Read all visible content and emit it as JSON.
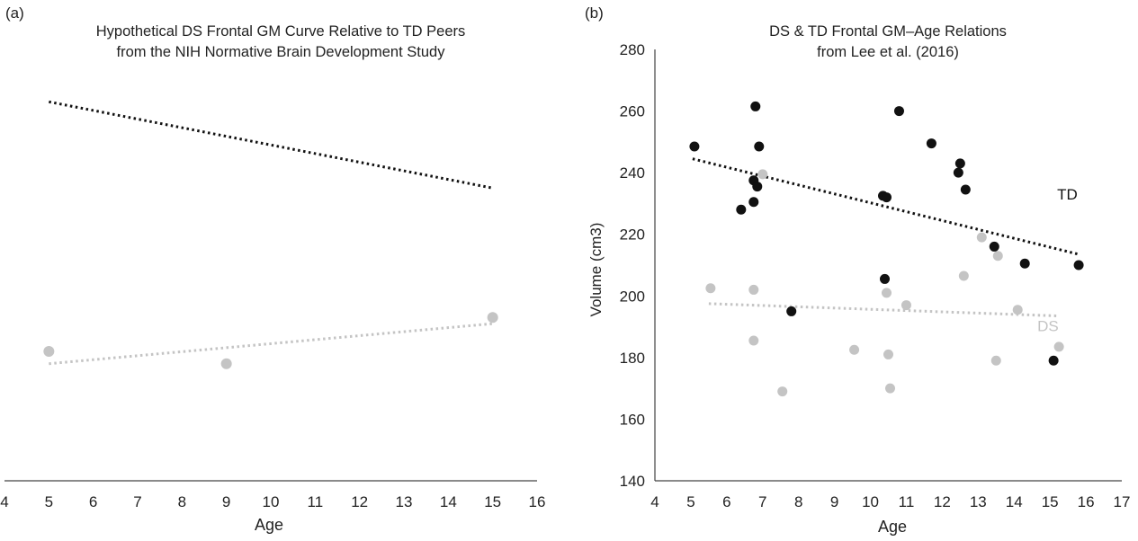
{
  "chart_data": [
    {
      "panel_label": "(a)",
      "type": "scatter",
      "title": "Hypothetical DS Frontal GM Curve Relative to TD Peers",
      "subtitle": "from the NIH Normative Brain Development Study",
      "xlabel": "Age",
      "ylabel": "",
      "xlim": [
        4,
        16
      ],
      "ylim": [
        140,
        280
      ],
      "x_ticks": [
        "4",
        "5",
        "6",
        "7",
        "8",
        "9",
        "10",
        "11",
        "12",
        "13",
        "14",
        "15",
        "16"
      ],
      "y_axis_visible": false,
      "grid": false,
      "series": [
        {
          "label": "",
          "color": "#111111",
          "points": [],
          "trend": [
            [
              5,
              263
            ],
            [
              15,
              235
            ]
          ]
        },
        {
          "label": "",
          "color": "#c4c4c4",
          "points": [
            [
              5,
              182
            ],
            [
              9,
              178
            ],
            [
              15,
              193
            ]
          ],
          "trend": [
            [
              5,
              178
            ],
            [
              15,
              191
            ]
          ]
        }
      ]
    },
    {
      "panel_label": "(b)",
      "type": "scatter",
      "title": "DS & TD Frontal GM–Age Relations",
      "subtitle": "from Lee et al. (2016)",
      "xlabel": "Age",
      "ylabel": "Volume (cm3)",
      "xlim": [
        4,
        17
      ],
      "ylim": [
        140,
        280
      ],
      "x_ticks": [
        "4",
        "5",
        "6",
        "7",
        "8",
        "9",
        "10",
        "11",
        "12",
        "13",
        "14",
        "15",
        "16",
        "17"
      ],
      "y_ticks": [
        "140",
        "160",
        "180",
        "200",
        "220",
        "240",
        "260",
        "280"
      ],
      "y_axis_visible": true,
      "grid": false,
      "series": [
        {
          "label": "TD",
          "color": "#111111",
          "points": [
            [
              5.1,
              248.5
            ],
            [
              6.4,
              228
            ],
            [
              6.75,
              237.5
            ],
            [
              6.75,
              230.5
            ],
            [
              6.8,
              261.5
            ],
            [
              6.85,
              235.5
            ],
            [
              6.9,
              248.5
            ],
            [
              7.8,
              195
            ],
            [
              10.35,
              232.5
            ],
            [
              10.45,
              232
            ],
            [
              10.4,
              205.5
            ],
            [
              10.8,
              260
            ],
            [
              11.7,
              249.5
            ],
            [
              12.45,
              240
            ],
            [
              12.5,
              243
            ],
            [
              12.65,
              234.5
            ],
            [
              13.45,
              216
            ],
            [
              14.3,
              210.5
            ],
            [
              15.1,
              179
            ],
            [
              15.8,
              210
            ]
          ],
          "trend": [
            [
              5.05,
              244.5
            ],
            [
              15.8,
              213.5
            ]
          ]
        },
        {
          "label": "DS",
          "color": "#c4c4c4",
          "points": [
            [
              5.55,
              202.5
            ],
            [
              6.75,
              202
            ],
            [
              6.75,
              185.5
            ],
            [
              7.0,
              239.5
            ],
            [
              7.55,
              169
            ],
            [
              9.55,
              182.5
            ],
            [
              10.45,
              201
            ],
            [
              10.5,
              181
            ],
            [
              10.55,
              170
            ],
            [
              11.0,
              197
            ],
            [
              12.6,
              206.5
            ],
            [
              13.1,
              219
            ],
            [
              13.55,
              213
            ],
            [
              13.5,
              179
            ],
            [
              14.1,
              195.5
            ],
            [
              15.25,
              183.5
            ]
          ],
          "trend": [
            [
              5.5,
              197.5
            ],
            [
              15.25,
              193.5
            ]
          ]
        }
      ]
    }
  ]
}
